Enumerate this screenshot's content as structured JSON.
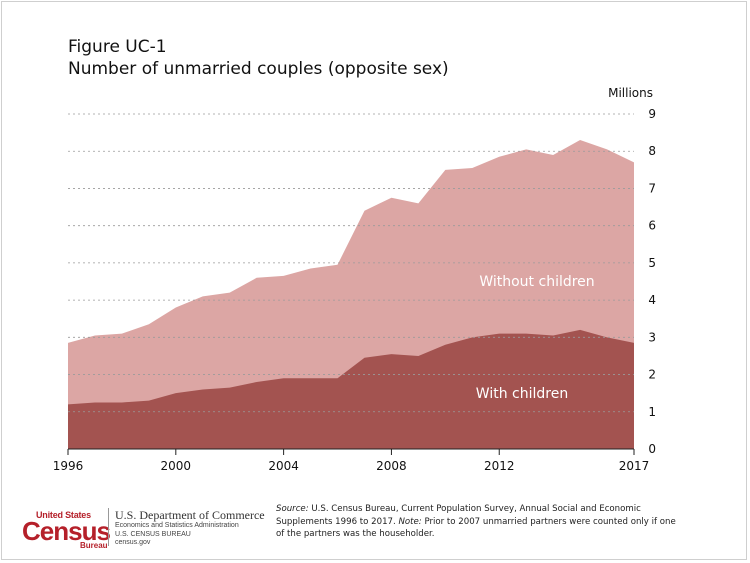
{
  "title": {
    "line1": "Figure UC-1",
    "line2": "Number of unmarried couples (opposite sex)"
  },
  "colors": {
    "without_children": "#dca6a4",
    "with_children": "#a35350",
    "gridline": "#9a9a9a",
    "brand_red": "#b5202a"
  },
  "chart_data": {
    "type": "area",
    "stacked": true,
    "title": "Number of unmarried couples (opposite sex)",
    "unit_label": "Millions",
    "x": [
      1996,
      1997,
      1998,
      1999,
      2000,
      2001,
      2002,
      2003,
      2004,
      2005,
      2006,
      2007,
      2008,
      2009,
      2010,
      2011,
      2012,
      2013,
      2014,
      2015,
      2016,
      2017
    ],
    "series": [
      {
        "name": "With children",
        "values": [
          1.2,
          1.25,
          1.25,
          1.3,
          1.5,
          1.6,
          1.65,
          1.8,
          1.9,
          1.9,
          1.9,
          2.45,
          2.55,
          2.5,
          2.8,
          3.0,
          3.1,
          3.1,
          3.05,
          3.2,
          3.0,
          2.85
        ]
      },
      {
        "name": "Without children",
        "values": [
          1.65,
          1.8,
          1.85,
          2.05,
          2.3,
          2.5,
          2.55,
          2.8,
          2.75,
          2.95,
          3.05,
          3.95,
          4.2,
          4.1,
          4.7,
          4.55,
          4.75,
          4.95,
          4.85,
          5.1,
          5.05,
          4.85
        ]
      }
    ],
    "totals": [
      2.85,
      3.05,
      3.1,
      3.35,
      3.8,
      4.1,
      4.2,
      4.6,
      4.65,
      4.85,
      4.95,
      6.4,
      6.75,
      6.6,
      7.5,
      7.55,
      7.85,
      8.05,
      7.9,
      8.3,
      8.05,
      7.7
    ],
    "xticks": [
      1996,
      2000,
      2004,
      2008,
      2012,
      2017
    ],
    "yticks": [
      0,
      1,
      2,
      3,
      4,
      5,
      6,
      7,
      8,
      9
    ],
    "xlim": [
      1996,
      2017
    ],
    "ylim": [
      0,
      9
    ],
    "grid": "horizontal dotted",
    "series_labels": [
      "Without children",
      "With children"
    ]
  },
  "footer": {
    "logo_top": "United States",
    "logo_main": "Census",
    "logo_bottom": "Bureau",
    "dept_name": "U.S. Department of Commerce",
    "dept_line1": "Economics and Statistics Administration",
    "dept_line2": "U.S. CENSUS BUREAU",
    "dept_line3": "census.gov",
    "source_label": "Source:",
    "source_text": " U.S. Census Bureau, Current Population Survey, Annual Social and Economic Supplements 1996 to 2017. ",
    "note_label": "Note:",
    "note_text": " Prior to 2007 unmarried partners were counted only if one of the partners was the householder."
  }
}
